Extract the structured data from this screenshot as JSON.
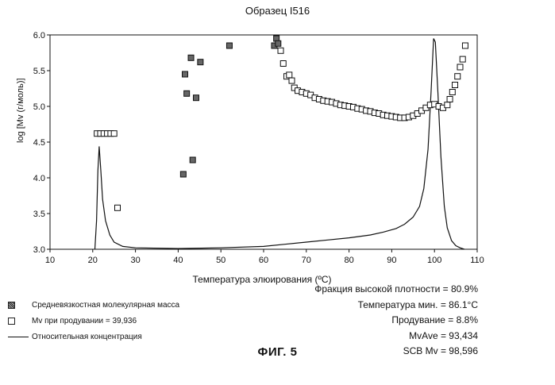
{
  "chart_data": {
    "type": "scatter",
    "title": "Образец I516",
    "xlabel": "Температура элюирования (ºC)",
    "ylabel": "log [Mv (г/моль)]",
    "xlim": [
      10,
      110
    ],
    "ylim": [
      3.0,
      6.0
    ],
    "xticks": [
      "10",
      "20",
      "30",
      "40",
      "50",
      "60",
      "70",
      "80",
      "90",
      "100",
      "110"
    ],
    "yticks": [
      "3.0",
      "3.5",
      "4.0",
      "4.5",
      "5.0",
      "5.5",
      "6.0"
    ],
    "series": [
      {
        "name": "Средневязкостная молекулярная масса",
        "marker": "filled-square",
        "points": [
          [
            41.2,
            4.05
          ],
          [
            41.6,
            5.45
          ],
          [
            42.0,
            5.18
          ],
          [
            43.0,
            5.68
          ],
          [
            43.4,
            4.25
          ],
          [
            44.2,
            5.12
          ],
          [
            45.2,
            5.62
          ],
          [
            52.0,
            5.85
          ],
          [
            62.5,
            5.85
          ],
          [
            63.0,
            5.95
          ],
          [
            63.4,
            5.88
          ]
        ]
      },
      {
        "name": "Mv при продувании",
        "label_value": "39,936",
        "marker": "open-square",
        "points": [
          [
            21.0,
            4.62
          ],
          [
            21.8,
            4.62
          ],
          [
            22.6,
            4.62
          ],
          [
            23.4,
            4.62
          ],
          [
            24.2,
            4.62
          ],
          [
            25.0,
            4.62
          ],
          [
            25.8,
            3.58
          ],
          [
            64.0,
            5.78
          ],
          [
            64.6,
            5.6
          ],
          [
            65.4,
            5.42
          ],
          [
            66.0,
            5.44
          ],
          [
            66.6,
            5.36
          ],
          [
            67.2,
            5.26
          ],
          [
            68.0,
            5.22
          ],
          [
            69.0,
            5.2
          ],
          [
            70.0,
            5.18
          ],
          [
            71.0,
            5.16
          ],
          [
            72.0,
            5.12
          ],
          [
            73.0,
            5.1
          ],
          [
            74.0,
            5.08
          ],
          [
            75.0,
            5.07
          ],
          [
            76.0,
            5.06
          ],
          [
            77.0,
            5.04
          ],
          [
            78.0,
            5.02
          ],
          [
            79.0,
            5.01
          ],
          [
            80.0,
            5.0
          ],
          [
            81.0,
            4.99
          ],
          [
            82.0,
            4.97
          ],
          [
            83.0,
            4.96
          ],
          [
            84.0,
            4.94
          ],
          [
            85.0,
            4.93
          ],
          [
            86.0,
            4.91
          ],
          [
            87.0,
            4.9
          ],
          [
            88.0,
            4.88
          ],
          [
            89.0,
            4.87
          ],
          [
            90.0,
            4.86
          ],
          [
            91.0,
            4.85
          ],
          [
            92.0,
            4.84
          ],
          [
            93.0,
            4.84
          ],
          [
            94.0,
            4.85
          ],
          [
            95.0,
            4.87
          ],
          [
            96.0,
            4.9
          ],
          [
            97.0,
            4.94
          ],
          [
            98.0,
            4.98
          ],
          [
            99.0,
            5.02
          ],
          [
            100.0,
            5.03
          ],
          [
            101.0,
            5.0
          ],
          [
            102.0,
            4.98
          ],
          [
            103.0,
            5.02
          ],
          [
            103.6,
            5.1
          ],
          [
            104.2,
            5.2
          ],
          [
            104.8,
            5.3
          ],
          [
            105.4,
            5.42
          ],
          [
            106.0,
            5.55
          ],
          [
            106.6,
            5.66
          ],
          [
            107.2,
            5.85
          ]
        ]
      },
      {
        "name": "Относительная концентрация",
        "marker": "line",
        "points": [
          [
            20.5,
            3.0
          ],
          [
            20.9,
            3.4
          ],
          [
            21.2,
            4.1
          ],
          [
            21.5,
            4.44
          ],
          [
            21.9,
            4.1
          ],
          [
            22.3,
            3.7
          ],
          [
            23.0,
            3.4
          ],
          [
            24.0,
            3.2
          ],
          [
            25.0,
            3.1
          ],
          [
            27.0,
            3.04
          ],
          [
            30.0,
            3.02
          ],
          [
            40.0,
            3.01
          ],
          [
            50.0,
            3.02
          ],
          [
            60.0,
            3.04
          ],
          [
            65.0,
            3.07
          ],
          [
            70.0,
            3.1
          ],
          [
            75.0,
            3.13
          ],
          [
            80.0,
            3.16
          ],
          [
            85.0,
            3.2
          ],
          [
            88.0,
            3.24
          ],
          [
            91.0,
            3.29
          ],
          [
            93.0,
            3.35
          ],
          [
            95.0,
            3.45
          ],
          [
            96.5,
            3.6
          ],
          [
            97.5,
            3.85
          ],
          [
            98.5,
            4.4
          ],
          [
            99.2,
            5.2
          ],
          [
            99.8,
            5.95
          ],
          [
            100.2,
            5.9
          ],
          [
            100.8,
            5.2
          ],
          [
            101.5,
            4.3
          ],
          [
            102.3,
            3.6
          ],
          [
            103.0,
            3.3
          ],
          [
            104.0,
            3.12
          ],
          [
            105.0,
            3.05
          ],
          [
            106.0,
            3.02
          ],
          [
            107.0,
            3.0
          ]
        ]
      }
    ],
    "legend_placement": "bottom-left",
    "grid": false
  },
  "legend": {
    "items": [
      "Средневязкостная молекулярная масса",
      "Mv при продувании = 39,936",
      "Относительная концентрация"
    ]
  },
  "stats": {
    "high_density_fraction": "Фракция высокой плотности = 80.9%",
    "temp_min": "Температура мин. = 86.1°C",
    "purge": "Продувание = 8.8%",
    "mv_ave": "MvAve = 93,434",
    "scb_mv": "SCB Mv = 98,596"
  },
  "figure_caption": "ФИГ. 5"
}
